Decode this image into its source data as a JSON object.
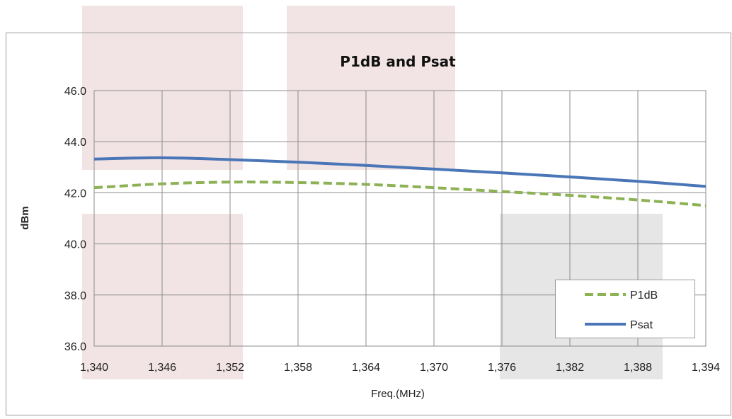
{
  "chart_data": {
    "type": "line",
    "title": "P1dB and Psat",
    "xlabel": "Freq.(MHz)",
    "ylabel": "dBm",
    "x": [
      1340,
      1346,
      1352,
      1358,
      1364,
      1370,
      1376,
      1382,
      1388,
      1394
    ],
    "x_tick_labels": [
      "1,340",
      "1,346",
      "1,352",
      "1,358",
      "1,364",
      "1,370",
      "1,376",
      "1,382",
      "1,388",
      "1,394"
    ],
    "y_tick_labels": [
      "36.0",
      "38.0",
      "40.0",
      "42.0",
      "44.0",
      "46.0"
    ],
    "xlim": [
      1340,
      1394
    ],
    "ylim": [
      36,
      46
    ],
    "grid": true,
    "legend_position": "bottom-right",
    "series": [
      {
        "name": "P1dB",
        "color": "#8db255",
        "style": "dashed",
        "values": [
          42.2,
          42.35,
          42.42,
          42.4,
          42.33,
          42.2,
          42.05,
          41.9,
          41.72,
          41.5
        ]
      },
      {
        "name": "Psat",
        "color": "#4a76b8",
        "style": "solid",
        "values": [
          43.32,
          43.37,
          43.3,
          43.2,
          43.07,
          42.93,
          42.78,
          42.62,
          42.45,
          42.25
        ]
      }
    ]
  }
}
